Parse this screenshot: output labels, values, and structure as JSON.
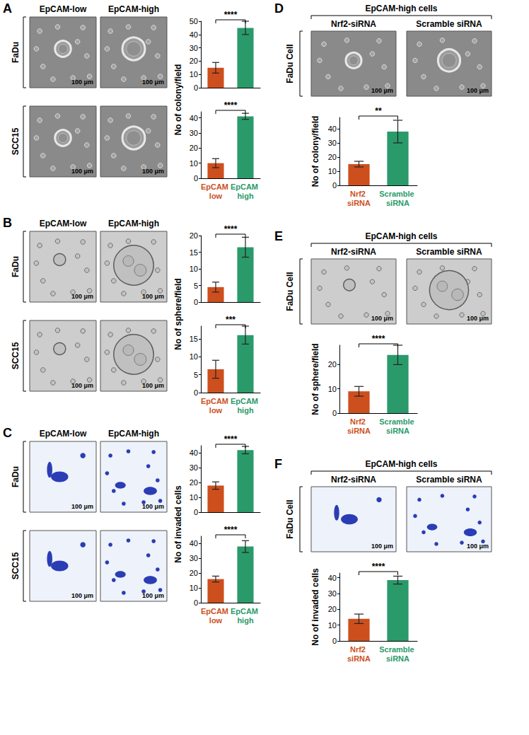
{
  "panels": [
    {
      "letter": "A",
      "columns": [
        "EpCAM-low",
        "EpCAM-high"
      ],
      "rows": [
        "FaDu",
        "SCC15"
      ],
      "scale_bar": "100 μm",
      "ylabel": "No of colony/field"
    },
    {
      "letter": "B",
      "columns": [
        "EpCAM-low",
        "EpCAM-high"
      ],
      "rows": [
        "FaDu",
        "SCC15"
      ],
      "scale_bar": "100 μm",
      "ylabel": "No of sphere/field"
    },
    {
      "letter": "C",
      "columns": [
        "EpCAM-low",
        "EpCAM-high"
      ],
      "rows": [
        "FaDu",
        "SCC15"
      ],
      "scale_bar": "100 μm",
      "ylabel": "No of invaded cells"
    },
    {
      "letter": "D",
      "header": "EpCAM-high cells",
      "columns": [
        "Nrf2-siRNA",
        "Scramble siRNA"
      ],
      "rows": [
        "FaDu Cell"
      ],
      "scale_bar": "100 μm",
      "ylabel": "No of colony/field"
    },
    {
      "letter": "E",
      "header": "EpCAM-high cells",
      "columns": [
        "Nrf2-siRNA",
        "Scramble siRNA"
      ],
      "rows": [
        "FaDu Cell"
      ],
      "scale_bar": "100 μm",
      "ylabel": "No of sphere/field"
    },
    {
      "letter": "F",
      "header": "EpCAM-high cells",
      "columns": [
        "Nrf2-siRNA",
        "Scramble siRNA"
      ],
      "rows": [
        "FaDu Cell"
      ],
      "scale_bar": "100 μm",
      "ylabel": "No of invaded cells"
    }
  ],
  "chart_data": [
    {
      "type": "bar",
      "categories": [
        "EpCAM low",
        "EpCAM high"
      ],
      "values": [
        15,
        45
      ],
      "errors": [
        4,
        5
      ],
      "colors": [
        "#cd4f1e",
        "#2a9a6a"
      ],
      "ylim": [
        0,
        50
      ],
      "yticks": [
        0,
        10,
        20,
        30,
        40,
        50
      ],
      "annotations": [
        "****"
      ],
      "grid": false,
      "tick_labels": "y"
    },
    {
      "type": "bar",
      "categories": [
        "EpCAM low",
        "EpCAM high"
      ],
      "values": [
        10,
        41
      ],
      "errors": [
        3,
        2
      ],
      "colors": [
        "#cd4f1e",
        "#2a9a6a"
      ],
      "ylim": [
        0,
        44
      ],
      "yticks": [
        0,
        10,
        20,
        30,
        40
      ],
      "annotations": [
        "****"
      ],
      "grid": false
    },
    {
      "type": "bar",
      "categories": [
        "EpCAM low",
        "EpCAM high"
      ],
      "values": [
        4.5,
        16.5
      ],
      "errors": [
        1.5,
        3
      ],
      "colors": [
        "#cd4f1e",
        "#2a9a6a"
      ],
      "ylim": [
        0,
        20
      ],
      "yticks": [
        0,
        5,
        10,
        15,
        20
      ],
      "annotations": [
        "****"
      ],
      "grid": false,
      "tick_labels": "y"
    },
    {
      "type": "bar",
      "categories": [
        "EpCAM low",
        "EpCAM high"
      ],
      "values": [
        6.5,
        16
      ],
      "errors": [
        2.5,
        2.5
      ],
      "colors": [
        "#cd4f1e",
        "#2a9a6a"
      ],
      "ylim": [
        0,
        18.5
      ],
      "yticks": [
        0,
        5,
        10,
        15
      ],
      "annotations": [
        "***"
      ],
      "grid": false
    },
    {
      "type": "bar",
      "categories": [
        "EpCAM low",
        "EpCAM high"
      ],
      "values": [
        18,
        42
      ],
      "errors": [
        2.5,
        2.5
      ],
      "colors": [
        "#cd4f1e",
        "#2a9a6a"
      ],
      "ylim": [
        0,
        45
      ],
      "yticks": [
        0,
        10,
        20,
        30,
        40
      ],
      "annotations": [
        "****"
      ],
      "grid": false,
      "tick_labels": "y"
    },
    {
      "type": "bar",
      "categories": [
        "EpCAM low",
        "EpCAM high"
      ],
      "values": [
        16,
        38
      ],
      "errors": [
        2,
        4
      ],
      "colors": [
        "#cd4f1e",
        "#2a9a6a"
      ],
      "ylim": [
        0,
        45
      ],
      "yticks": [
        0,
        10,
        20,
        30,
        40
      ],
      "annotations": [
        "****"
      ],
      "grid": false
    },
    {
      "type": "bar",
      "categories": [
        "Nrf2 siRNA",
        "Scramble siRNA"
      ],
      "values": [
        15,
        38
      ],
      "errors": [
        2,
        8
      ],
      "colors": [
        "#cd4f1e",
        "#2a9a6a"
      ],
      "ylim": [
        0,
        48
      ],
      "yticks": [
        0,
        10,
        20,
        30,
        40
      ],
      "annotations": [
        "**"
      ],
      "grid": false
    },
    {
      "type": "bar",
      "categories": [
        "Nrf2 siRNA",
        "Scramble siRNA"
      ],
      "values": [
        9,
        24
      ],
      "errors": [
        2,
        4
      ],
      "colors": [
        "#cd4f1e",
        "#2a9a6a"
      ],
      "ylim": [
        0,
        28
      ],
      "yticks": [
        0,
        10,
        20
      ],
      "annotations": [
        "****"
      ],
      "grid": false
    },
    {
      "type": "bar",
      "categories": [
        "Nrf2 siRNA",
        "Scramble siRNA"
      ],
      "values": [
        14,
        38.5
      ],
      "errors": [
        3,
        2.5
      ],
      "colors": [
        "#cd4f1e",
        "#2a9a6a"
      ],
      "ylim": [
        0,
        43
      ],
      "yticks": [
        0,
        10,
        20,
        30,
        40
      ],
      "annotations": [
        "****"
      ],
      "grid": false
    }
  ]
}
